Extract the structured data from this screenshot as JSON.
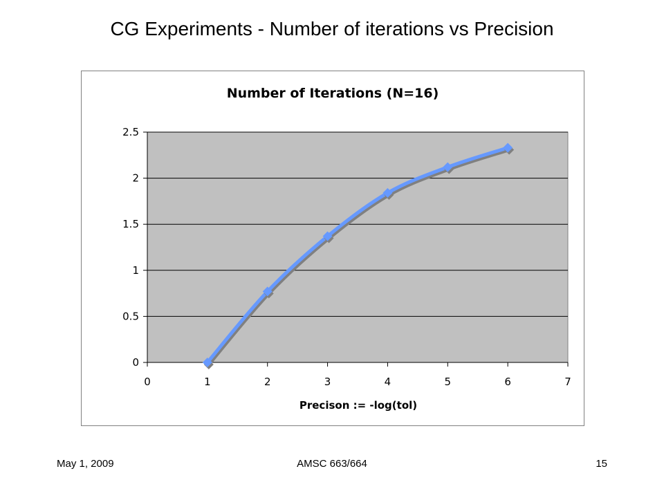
{
  "slide": {
    "title": "CG Experiments - Number of iterations vs Precision",
    "footer_left": "May 1, 2009",
    "footer_center": "AMSC 663/664",
    "footer_right": "15"
  },
  "colors": {
    "plot_background": "#c0c0c0",
    "series_line": "#6699ff",
    "series_shadow": "#808080",
    "gridline": "#000000"
  },
  "chart_data": {
    "type": "line",
    "title": "Number of Iterations (N=16)",
    "xlabel": "Precison := -log(tol)",
    "ylabel": "",
    "xlim": [
      0,
      7
    ],
    "ylim": [
      0,
      2.5
    ],
    "x_ticks": [
      0,
      1,
      2,
      3,
      4,
      5,
      6,
      7
    ],
    "y_ticks": [
      0,
      0.5,
      1,
      1.5,
      2,
      2.5
    ],
    "grid": true,
    "legend": "none",
    "series": [
      {
        "marker": "diamond",
        "x": [
          1,
          2,
          3,
          4,
          5,
          6
        ],
        "y": [
          0,
          0.77,
          1.37,
          1.84,
          2.12,
          2.33
        ]
      }
    ]
  }
}
